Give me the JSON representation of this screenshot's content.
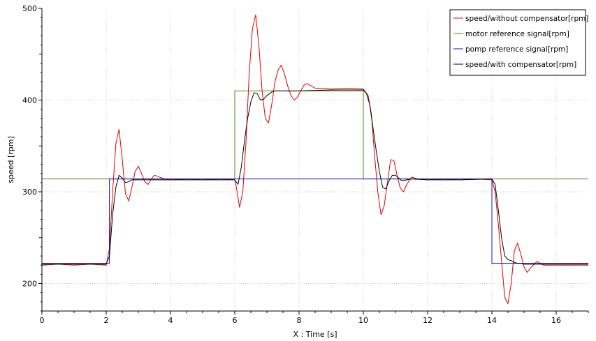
{
  "chart_data": {
    "type": "line",
    "title": "",
    "xlabel": "X : Time [s]",
    "ylabel": "speed [rpm]",
    "xlim": [
      0,
      17
    ],
    "ylim": [
      170,
      500
    ],
    "grid": true,
    "legend_position": "top-right",
    "x_ticks": [
      0,
      2,
      4,
      6,
      8,
      10,
      12,
      14,
      16
    ],
    "y_ticks": [
      200,
      300,
      400,
      500
    ],
    "series": [
      {
        "name": "speed/without compensator[rpm]",
        "color": "#e00000",
        "x": [
          0,
          0.5,
          1,
          1.5,
          2,
          2.1,
          2.2,
          2.3,
          2.4,
          2.5,
          2.6,
          2.7,
          2.8,
          2.9,
          3.0,
          3.1,
          3.2,
          3.3,
          3.4,
          3.5,
          3.6,
          3.8,
          4.0,
          4.5,
          5.0,
          5.5,
          6.0,
          6.05,
          6.15,
          6.25,
          6.35,
          6.45,
          6.55,
          6.65,
          6.75,
          6.85,
          6.95,
          7.05,
          7.15,
          7.25,
          7.35,
          7.45,
          7.55,
          7.65,
          7.75,
          7.85,
          7.95,
          8.05,
          8.15,
          8.25,
          8.5,
          9.0,
          9.5,
          10.0,
          10.15,
          10.25,
          10.35,
          10.45,
          10.55,
          10.65,
          10.75,
          10.85,
          10.95,
          11.05,
          11.15,
          11.25,
          11.35,
          11.5,
          11.7,
          12.0,
          12.5,
          13.0,
          13.5,
          14.0,
          14.1,
          14.2,
          14.3,
          14.4,
          14.5,
          14.6,
          14.7,
          14.8,
          14.9,
          15.0,
          15.1,
          15.2,
          15.4,
          15.6,
          16.0,
          16.5,
          17.0
        ],
        "y": [
          220,
          221,
          220,
          221,
          220,
          238,
          300,
          352,
          368,
          335,
          298,
          290,
          305,
          322,
          328,
          320,
          311,
          308,
          314,
          318,
          317,
          314,
          313,
          314,
          313,
          314,
          313,
          305,
          283,
          300,
          355,
          430,
          478,
          493,
          460,
          410,
          380,
          375,
          395,
          420,
          433,
          438,
          428,
          415,
          405,
          400,
          403,
          410,
          416,
          418,
          413,
          412,
          413,
          412,
          405,
          385,
          340,
          300,
          275,
          285,
          310,
          335,
          334,
          318,
          304,
          300,
          308,
          316,
          314,
          313,
          314,
          313,
          314,
          313,
          300,
          265,
          225,
          185,
          178,
          200,
          236,
          244,
          232,
          218,
          212,
          217,
          224,
          220,
          220,
          220,
          220
        ]
      },
      {
        "name": "motor reference signal[rpm]",
        "color": "#4f8a10",
        "x": [
          0,
          6.0,
          6.0,
          10.0,
          10.0,
          17.0
        ],
        "y": [
          314,
          314,
          410,
          410,
          314,
          314
        ]
      },
      {
        "name": "pomp reference signal[rpm]",
        "color": "#1010c8",
        "x": [
          0,
          2.1,
          2.1,
          14.0,
          14.0,
          17.0
        ],
        "y": [
          222,
          222,
          314,
          314,
          222,
          222
        ]
      },
      {
        "name": "speed/with compensator[rpm]",
        "color": "#000000",
        "x": [
          0,
          0.5,
          1,
          1.5,
          2.0,
          2.1,
          2.2,
          2.3,
          2.4,
          2.5,
          2.6,
          2.7,
          2.8,
          3.0,
          3.5,
          4.0,
          5.0,
          6.0,
          6.1,
          6.2,
          6.3,
          6.4,
          6.5,
          6.6,
          6.7,
          6.8,
          6.9,
          7.0,
          7.2,
          7.5,
          8.0,
          9.0,
          10.0,
          10.1,
          10.2,
          10.3,
          10.4,
          10.5,
          10.6,
          10.7,
          10.8,
          10.9,
          11.0,
          11.2,
          11.5,
          12.0,
          13.0,
          14.0,
          14.1,
          14.2,
          14.3,
          14.4,
          14.5,
          14.6,
          14.7,
          14.8,
          14.9,
          15.0,
          15.5,
          16.0,
          17.0
        ],
        "y": [
          221,
          221,
          221,
          221,
          221,
          230,
          275,
          305,
          318,
          315,
          310,
          311,
          313,
          313,
          313,
          313,
          313,
          313,
          308,
          326,
          355,
          380,
          398,
          408,
          407,
          400,
          401,
          405,
          410,
          410,
          410,
          411,
          411,
          407,
          395,
          370,
          345,
          322,
          305,
          303,
          312,
          318,
          318,
          312,
          314,
          313,
          313,
          314,
          308,
          280,
          250,
          230,
          226,
          225,
          223,
          222,
          222,
          221,
          221,
          221,
          221
        ]
      }
    ]
  }
}
